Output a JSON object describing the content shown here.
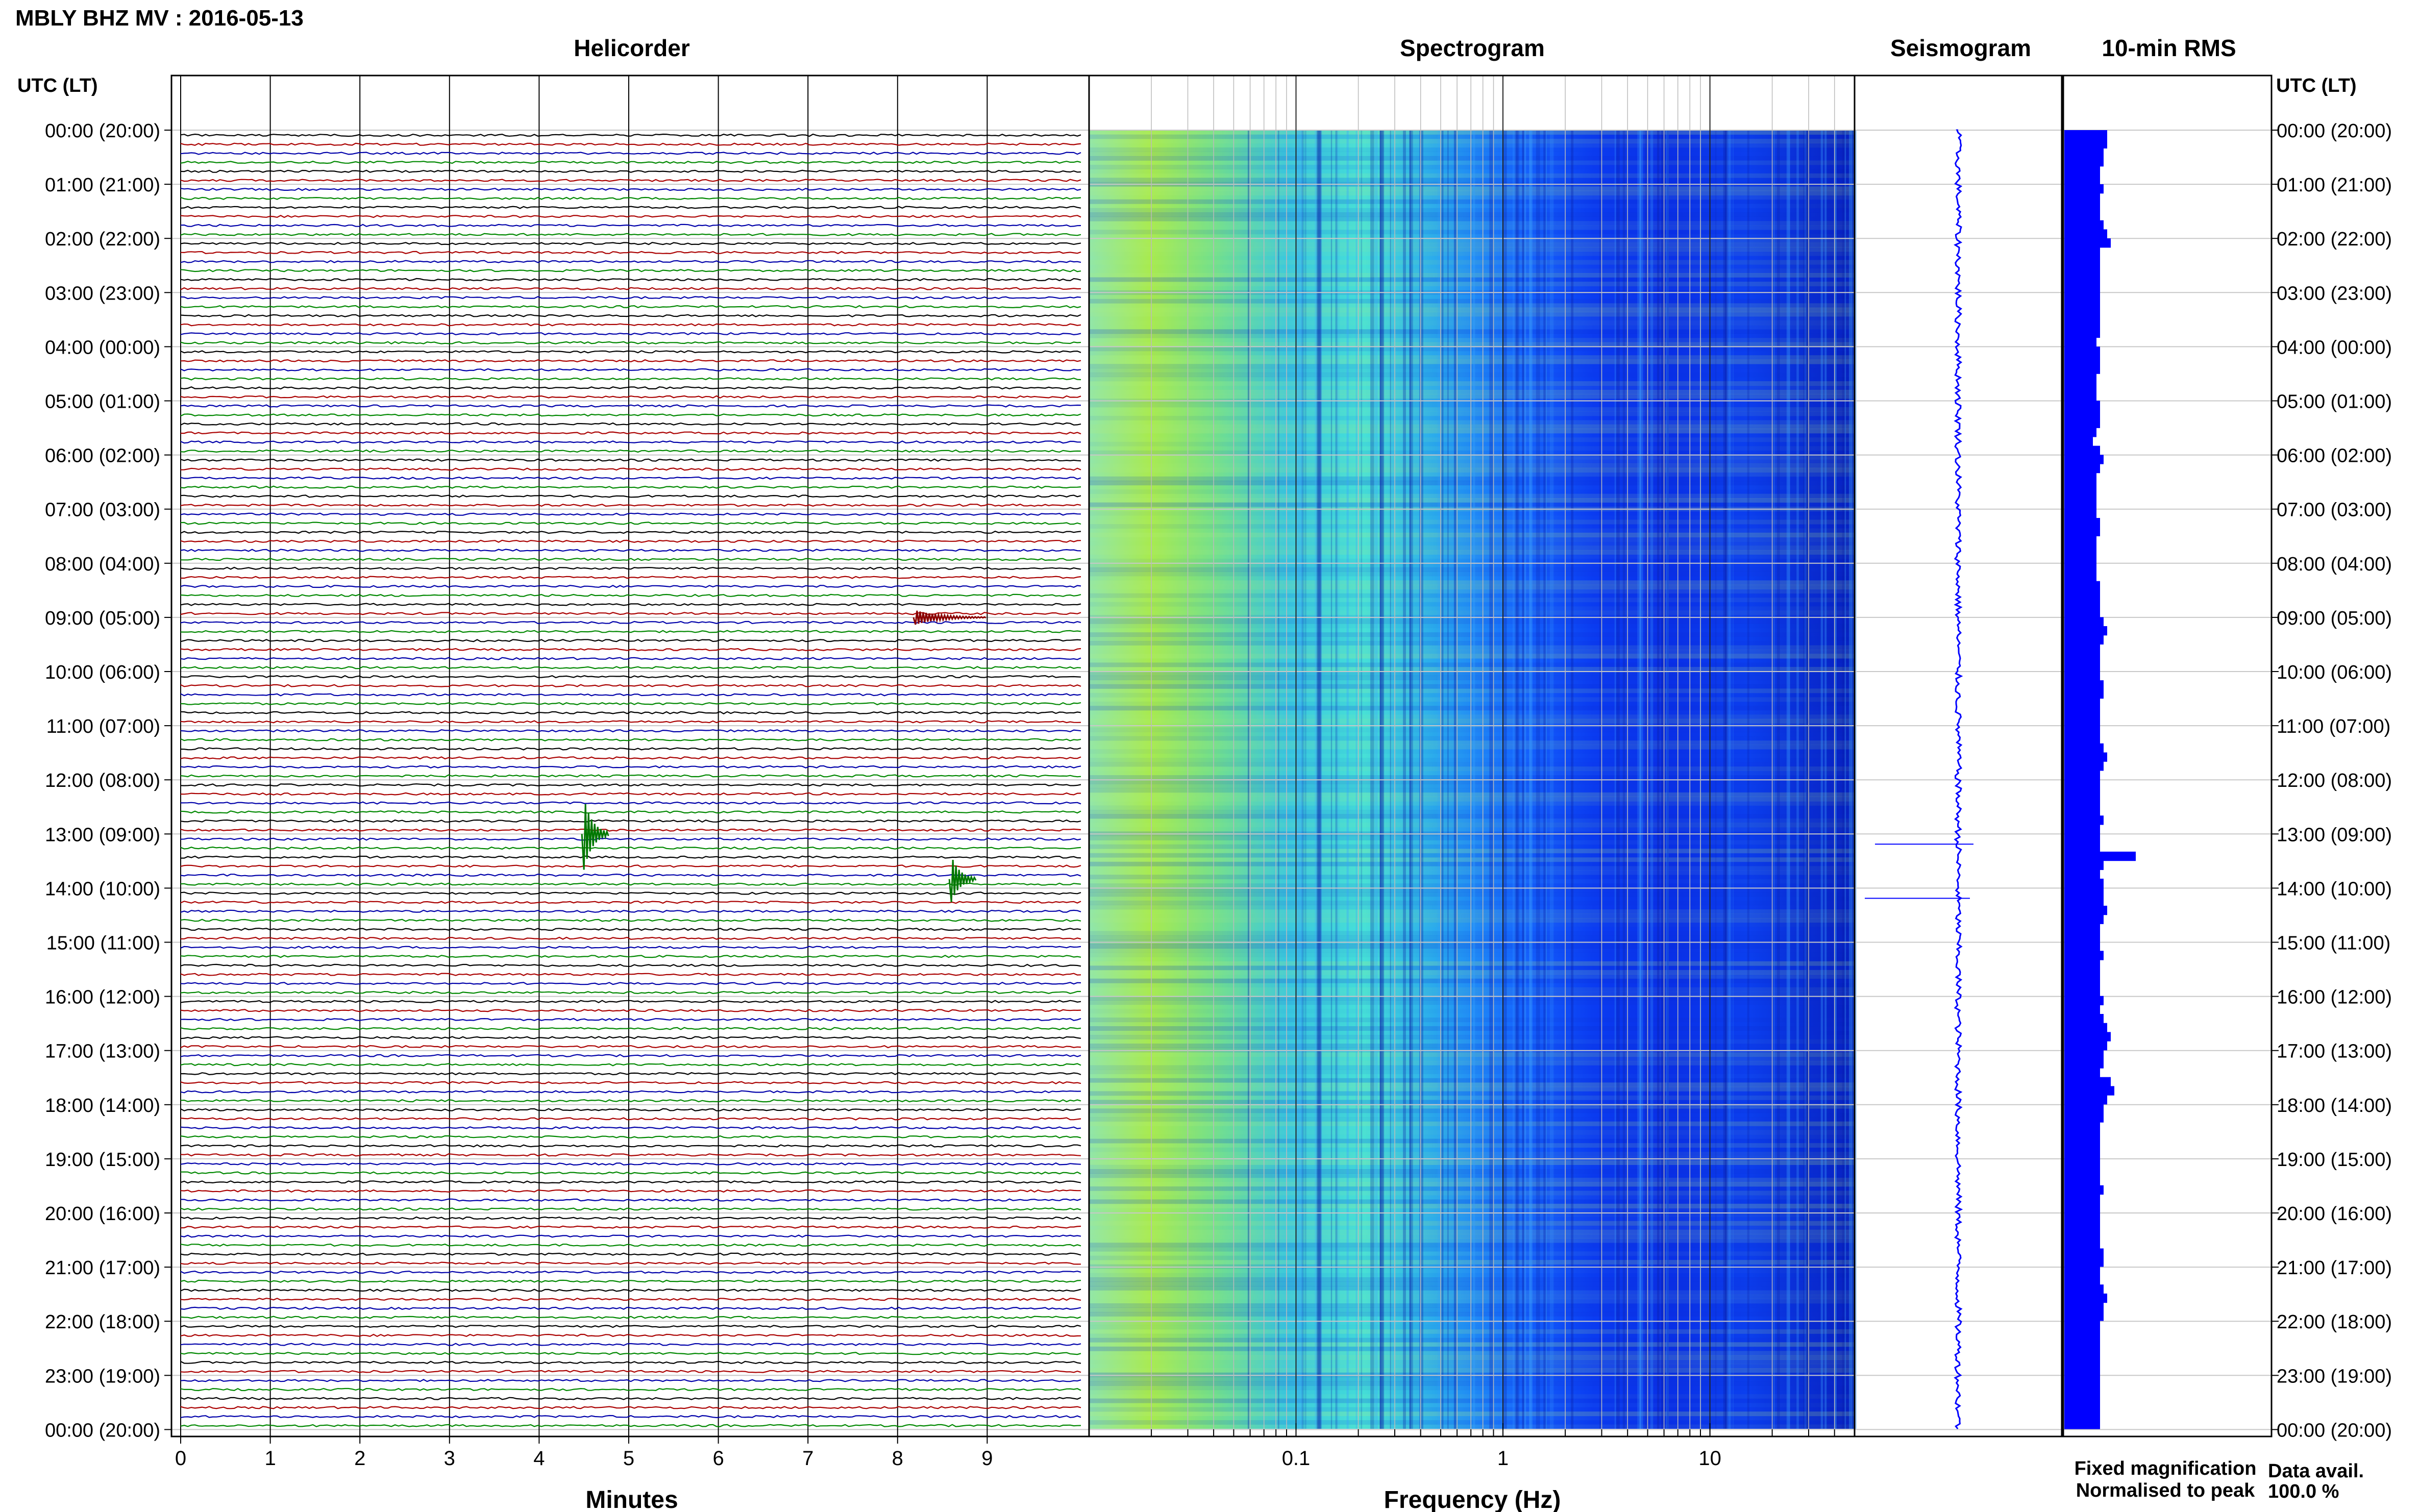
{
  "header": {
    "title": "MBLY BHZ MV : 2016-05-13",
    "time_axis_label_left": "UTC (LT)",
    "time_axis_label_right": "UTC (LT)"
  },
  "panels": {
    "helicorder": "Helicorder",
    "spectrogram": "Spectrogram",
    "seismogram": "Seismogram",
    "rms": "10-min RMS"
  },
  "legend": {
    "fixed": "Fixed magnification",
    "fixed_color": "#0000ff",
    "normalised": "Normalised to peak",
    "normalised_color": "#ff0000",
    "avail_label": "Data avail.",
    "avail_value": "100.0 %"
  },
  "trace_colors": [
    "#000000",
    "#aa0000",
    "#0000aa",
    "#008800"
  ],
  "chart_data": [
    {
      "type": "line",
      "title": "Helicorder",
      "xlabel": "Minutes",
      "ylabel": "UTC (LT)",
      "xlim": [
        0,
        10
      ],
      "x_ticks": [
        "0",
        "1",
        "2",
        "3",
        "4",
        "5",
        "6",
        "7",
        "8",
        "9"
      ],
      "y_tick_labels": [
        "00:00 (20:00)",
        "01:00 (21:00)",
        "02:00 (22:00)",
        "03:00 (23:00)",
        "04:00 (00:00)",
        "05:00 (01:00)",
        "06:00 (02:00)",
        "07:00 (03:00)",
        "08:00 (04:00)",
        "09:00 (05:00)",
        "10:00 (06:00)",
        "11:00 (07:00)",
        "12:00 (08:00)",
        "13:00 (09:00)",
        "14:00 (10:00)",
        "15:00 (11:00)",
        "16:00 (12:00)",
        "17:00 (13:00)",
        "18:00 (14:00)",
        "19:00 (15:00)",
        "20:00 (16:00)",
        "21:00 (17:00)",
        "22:00 (18:00)",
        "23:00 (19:00)",
        "00:00 (20:00)"
      ],
      "traces_per_hour": 6,
      "events": [
        {
          "time": "13:00",
          "minute": 4.5,
          "amplitude": "large"
        },
        {
          "time": "13:50",
          "minute": 8.6,
          "amplitude": "medium"
        },
        {
          "time": "09:00",
          "minute": 8.2,
          "amplitude": "noise burst"
        }
      ]
    },
    {
      "type": "heatmap",
      "title": "Spectrogram",
      "xlabel": "Frequency (Hz)",
      "x_scale": "log",
      "xlim": [
        0.01,
        50
      ],
      "x_ticks": [
        "0.1",
        "1",
        "10"
      ],
      "colormap": "yellow-green-cyan-blue (high to low power)"
    },
    {
      "type": "line",
      "title": "Seismogram",
      "spikes": [
        {
          "time": "13:00",
          "direction": "left",
          "extent": "large"
        },
        {
          "time": "14:00",
          "direction": "both",
          "extent": "large"
        }
      ]
    },
    {
      "type": "bar",
      "title": "10-min RMS",
      "orientation": "horizontal",
      "interval_minutes": 10,
      "values": [
        1.2,
        1.2,
        1.1,
        1.1,
        1.0,
        1.0,
        1.1,
        1.0,
        1.0,
        1.0,
        1.1,
        1.2,
        1.3,
        1.0,
        1.0,
        1.0,
        1.0,
        1.0,
        1.0,
        1.0,
        1.0,
        1.0,
        1.0,
        0.9,
        1.0,
        1.0,
        1.0,
        0.9,
        0.9,
        0.9,
        1.0,
        1.0,
        1.0,
        0.9,
        0.8,
        1.0,
        1.1,
        1.0,
        0.9,
        0.9,
        0.9,
        0.9,
        0.9,
        1.0,
        1.0,
        0.9,
        0.9,
        0.9,
        0.9,
        0.9,
        1.0,
        1.0,
        1.0,
        1.0,
        1.1,
        1.2,
        1.1,
        1.0,
        1.0,
        1.0,
        1.0,
        1.1,
        1.1,
        1.0,
        1.0,
        1.0,
        1.0,
        1.0,
        1.1,
        1.2,
        1.1,
        1.0,
        1.0,
        1.0,
        1.0,
        1.0,
        1.1,
        1.0,
        1.0,
        1.0,
        2.0,
        1.1,
        1.0,
        1.1,
        1.1,
        1.1,
        1.2,
        1.1,
        1.0,
        1.0,
        1.0,
        1.1,
        1.0,
        1.0,
        1.0,
        1.0,
        1.1,
        1.0,
        1.1,
        1.2,
        1.3,
        1.2,
        1.1,
        1.1,
        1.0,
        1.3,
        1.4,
        1.2,
        1.1,
        1.1,
        1.0,
        1.0,
        1.0,
        1.0,
        1.0,
        1.0,
        1.0,
        1.1,
        1.0,
        1.0,
        1.0,
        1.0,
        1.0,
        1.0,
        1.1,
        1.1,
        1.0,
        1.0,
        1.1,
        1.2,
        1.1,
        1.1,
        1.0,
        1.0,
        1.0,
        1.0,
        1.0,
        1.0,
        1.0,
        1.0,
        1.0,
        1.0,
        1.0,
        1.0
      ]
    }
  ]
}
